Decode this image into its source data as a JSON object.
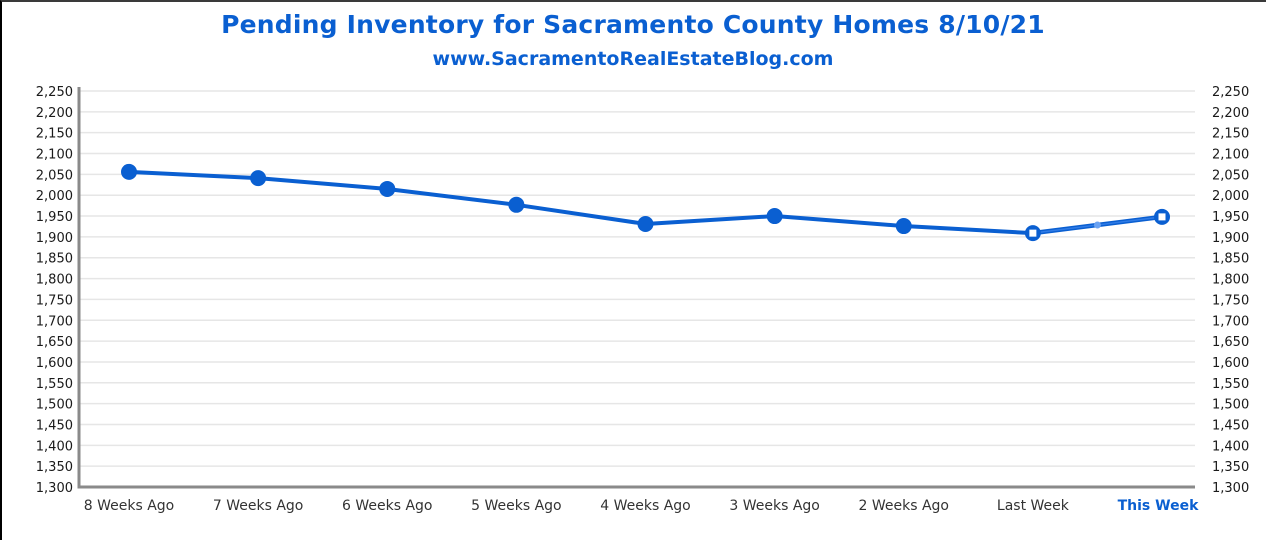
{
  "title": "Pending Inventory for Sacramento County Homes 8/10/21",
  "subtitle": "www.SacramentoRealEstateBlog.com",
  "colors": {
    "line": "#0a5fd1",
    "highlight_line": "#2f7be6",
    "grid": "#e6e6e6",
    "axis": "#8a8a8a",
    "title": "#0a5fd1"
  },
  "chart_data": {
    "type": "line",
    "title": "Pending Inventory for Sacramento County Homes 8/10/21",
    "subtitle": "www.SacramentoRealEstateBlog.com",
    "xlabel": "",
    "ylabel": "",
    "categories": [
      "8 Weeks Ago",
      "7 Weeks Ago",
      "6 Weeks Ago",
      "5 Weeks Ago",
      "4 Weeks Ago",
      "3 Weeks Ago",
      "2 Weeks Ago",
      "Last Week",
      "This Week"
    ],
    "series": [
      {
        "name": "Pending Inventory",
        "values": [
          2056,
          2041,
          2015,
          1977,
          1931,
          1950,
          1926,
          1909,
          1948
        ]
      }
    ],
    "ylim": [
      1300,
      2250
    ],
    "yticks": [
      1300,
      1350,
      1400,
      1450,
      1500,
      1550,
      1600,
      1650,
      1700,
      1750,
      1800,
      1850,
      1900,
      1950,
      2000,
      2050,
      2100,
      2150,
      2200,
      2250
    ],
    "ytick_labels": [
      "1,300",
      "1,350",
      "1,400",
      "1,450",
      "1,500",
      "1,550",
      "1,600",
      "1,650",
      "1,700",
      "1,750",
      "1,800",
      "1,850",
      "1,900",
      "1,950",
      "2,000",
      "2,050",
      "2,100",
      "2,150",
      "2,200",
      "2,250"
    ],
    "secondary_y_axis": true,
    "grid": true,
    "legend": "none",
    "highlighted_category": "This Week"
  }
}
